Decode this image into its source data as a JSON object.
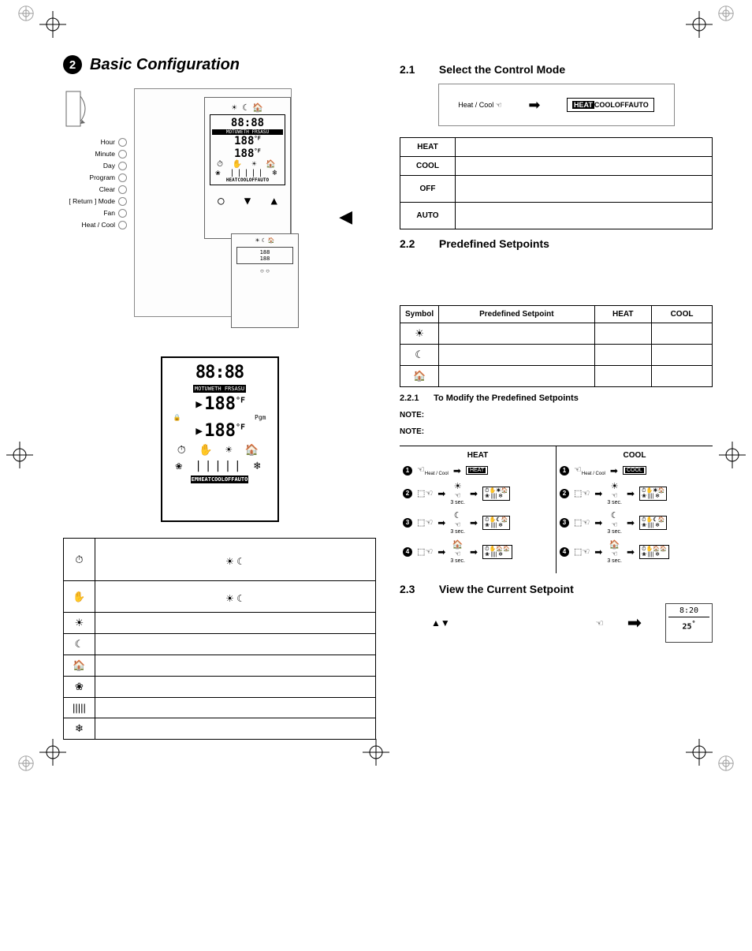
{
  "left": {
    "section_number": "2",
    "section_title": "Basic Configuration",
    "button_labels": [
      "Hour",
      "Minute",
      "Day",
      "Program",
      "Clear",
      "[ Return ]  Mode",
      "Fan",
      "Heat / Cool"
    ],
    "lcd": {
      "time": "88:88",
      "days": "MOTUWETH FRSASU",
      "temp1": "188",
      "unit1": "°F",
      "temp2": "188",
      "unit2": "°F",
      "icon_row1": "⏱ ✋ ☀ 🏠",
      "icon_row2": "❀ ||||| ❄",
      "mode_strip": "EMHEATCOOLOFFAUTO"
    },
    "legend_rows": [
      {
        "icon": "⏱",
        "text": "",
        "extra_icons": "☀   ☾"
      },
      {
        "icon": "✋",
        "text": "",
        "extra_icons": "☀   ☾"
      },
      {
        "icon": "☀",
        "text": ""
      },
      {
        "icon": "☾",
        "text": ""
      },
      {
        "icon": "🏠",
        "text": ""
      },
      {
        "icon": "❀",
        "text": ""
      },
      {
        "icon": "|||||",
        "text": ""
      },
      {
        "icon": "❄",
        "text": ""
      }
    ]
  },
  "right": {
    "s21_num": "2.1",
    "s21_title": "Select the Control Mode",
    "mode_cycle_hand": "Heat / Cool",
    "mode_cycle_strip": "HEATCOOLOFFAUTO",
    "mode_table": [
      {
        "mode": "HEAT",
        "desc": ""
      },
      {
        "mode": "COOL",
        "desc": ""
      },
      {
        "mode": "OFF",
        "desc": ""
      },
      {
        "mode": "AUTO",
        "desc": ""
      }
    ],
    "s22_num": "2.2",
    "s22_title": "Predefined Setpoints",
    "symbol_table_headers": [
      "Symbol",
      "Predefined Setpoint",
      "HEAT",
      "COOL"
    ],
    "symbol_rows": [
      {
        "sym": "☀"
      },
      {
        "sym": "☾"
      },
      {
        "sym": "🏠"
      }
    ],
    "s221_num": "2.2.1",
    "s221_title": "To Modify the Predefined Setpoints",
    "note_label": "NOTE:",
    "steps": {
      "heat_label": "HEAT",
      "cool_label": "COOL",
      "hand_label": "Heat / Cool",
      "sec_label": "3 sec.",
      "rows": [
        {
          "n": "1",
          "icon": "",
          "mode": "HEAT"
        },
        {
          "n": "2",
          "icon": "☀"
        },
        {
          "n": "3",
          "icon": "☾"
        },
        {
          "n": "4",
          "icon": "🏠"
        }
      ],
      "rows_cool": [
        {
          "n": "1",
          "icon": "",
          "mode": "COOL"
        },
        {
          "n": "2",
          "icon": "☀"
        },
        {
          "n": "3",
          "icon": "☾"
        },
        {
          "n": "4",
          "icon": "🏠"
        }
      ]
    },
    "s23_num": "2.3",
    "s23_title": "View the Current Setpoint",
    "updown_glyph": "▲▼",
    "mini_device": {
      "time": "8:20",
      "temp": "25",
      "unit": "°"
    }
  }
}
